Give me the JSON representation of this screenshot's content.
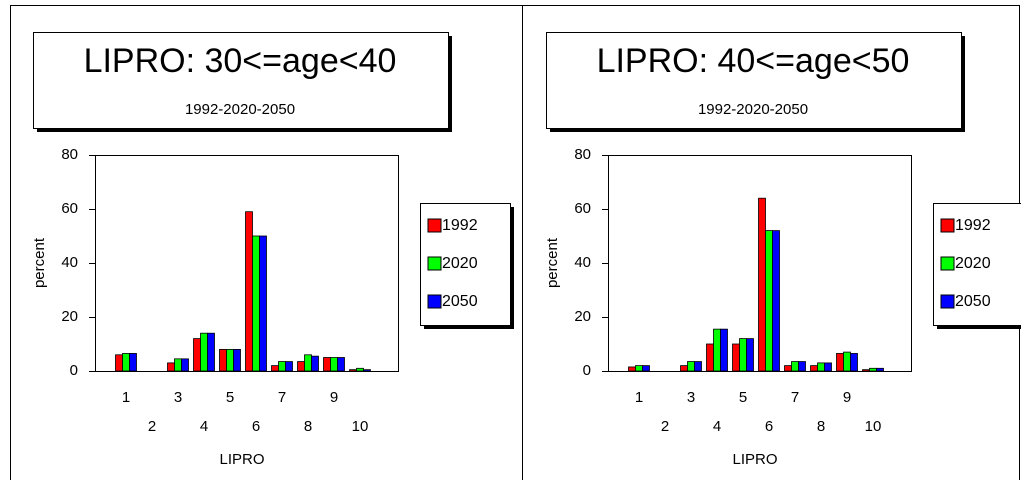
{
  "chart_data": [
    {
      "type": "bar",
      "title": "LIPRO: 30<=age<40",
      "subtitle": "1992-2020-2050",
      "x_label": "LIPRO",
      "y_label": "percent",
      "categories": [
        "1",
        "2",
        "3",
        "4",
        "5",
        "6",
        "7",
        "8",
        "9",
        "10"
      ],
      "series": [
        {
          "name": "1992",
          "color": "#ff0000",
          "values": [
            6,
            0,
            3,
            12,
            8,
            59,
            2,
            3.5,
            5,
            0.5
          ]
        },
        {
          "name": "2020",
          "color": "#00ff00",
          "values": [
            6.5,
            0,
            4.5,
            14,
            8,
            50,
            3.5,
            6,
            5,
            1
          ]
        },
        {
          "name": "2050",
          "color": "#0000ff",
          "values": [
            6.5,
            0,
            4.5,
            14,
            8,
            50,
            3.5,
            5.5,
            5,
            0.5
          ]
        }
      ],
      "ylim": [
        0,
        80
      ],
      "yticks": [
        0,
        20,
        40,
        60,
        80
      ],
      "legend": "right"
    },
    {
      "type": "bar",
      "title": "LIPRO: 40<=age<50",
      "subtitle": "1992-2020-2050",
      "x_label": "LIPRO",
      "y_label": "percent",
      "categories": [
        "1",
        "2",
        "3",
        "4",
        "5",
        "6",
        "7",
        "8",
        "9",
        "10"
      ],
      "series": [
        {
          "name": "1992",
          "color": "#ff0000",
          "values": [
            1.5,
            0,
            2,
            10,
            10,
            64,
            2,
            2,
            6.5,
            0.5
          ]
        },
        {
          "name": "2020",
          "color": "#00ff00",
          "values": [
            2,
            0,
            3.5,
            15.5,
            12,
            52,
            3.5,
            3,
            7,
            1
          ]
        },
        {
          "name": "2050",
          "color": "#0000ff",
          "values": [
            2,
            0,
            3.5,
            15.5,
            12,
            52,
            3.5,
            3,
            6.5,
            1
          ]
        }
      ],
      "ylim": [
        0,
        80
      ],
      "yticks": [
        0,
        20,
        40,
        60,
        80
      ],
      "legend": "right"
    }
  ]
}
